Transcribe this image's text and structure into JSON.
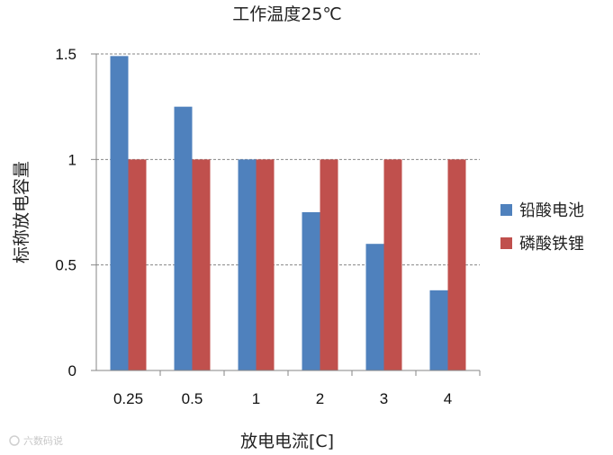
{
  "chart_data": {
    "type": "bar",
    "title": "工作温度25℃",
    "xlabel": "放电电流[C]",
    "ylabel": "标称放电容量",
    "categories": [
      "0.25",
      "0.5",
      "1",
      "2",
      "3",
      "4"
    ],
    "series": [
      {
        "name": "铅酸电池",
        "color": "#4f81bd",
        "values": [
          1.49,
          1.25,
          1.0,
          0.75,
          0.6,
          0.38
        ]
      },
      {
        "name": "磷酸铁锂",
        "color": "#c0504d",
        "values": [
          1.0,
          1.0,
          1.0,
          1.0,
          1.0,
          1.0
        ]
      }
    ],
    "ylim": [
      0,
      1.5
    ],
    "yticks": [
      "0",
      "0.5",
      "1",
      "1.5"
    ],
    "grid": true,
    "gridline_color": "#868686",
    "legend_position": "right"
  },
  "watermark": "六数码说"
}
